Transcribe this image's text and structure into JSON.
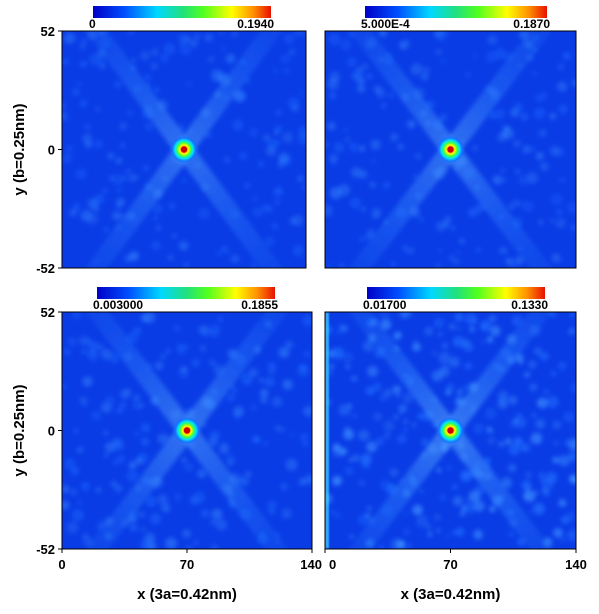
{
  "chart_data": [
    {
      "type": "heatmap",
      "panel": "top-left",
      "colorbar": {
        "min_label": "0",
        "max_label": "0.1940",
        "min": 0,
        "max": 0.194
      },
      "xlim": [
        0,
        140
      ],
      "ylim": [
        -52,
        52
      ],
      "xticks": [],
      "yticks": [
        "52",
        "0",
        "-52"
      ],
      "xlabel": "",
      "ylabel": "y (b=0.25nm)",
      "peak": {
        "x": 70,
        "y": 0
      },
      "noise": 0.06
    },
    {
      "type": "heatmap",
      "panel": "top-right",
      "colorbar": {
        "min_label": "5.000E-4",
        "max_label": "0.1870",
        "min": 0.0005,
        "max": 0.187
      },
      "xlim": [
        0,
        140
      ],
      "ylim": [
        -52,
        52
      ],
      "xticks": [],
      "yticks": [],
      "xlabel": "",
      "ylabel": "",
      "peak": {
        "x": 70,
        "y": 0
      },
      "noise": 0.07
    },
    {
      "type": "heatmap",
      "panel": "bottom-left",
      "colorbar": {
        "min_label": "0.003000",
        "max_label": "0.1855",
        "min": 0.003,
        "max": 0.1855
      },
      "xlim": [
        0,
        140
      ],
      "ylim": [
        -52,
        52
      ],
      "xticks": [
        "0",
        "70",
        "140"
      ],
      "yticks": [
        "52",
        "0",
        "-52"
      ],
      "xlabel": "x (3a=0.42nm)",
      "ylabel": "y (b=0.25nm)",
      "peak": {
        "x": 70,
        "y": 0
      },
      "noise": 0.08
    },
    {
      "type": "heatmap",
      "panel": "bottom-right",
      "colorbar": {
        "min_label": "0.01700",
        "max_label": "0.1330",
        "min": 0.017,
        "max": 0.133
      },
      "xlim": [
        0,
        140
      ],
      "ylim": [
        -52,
        52
      ],
      "xticks": [
        "0",
        "70",
        "140"
      ],
      "yticks": [],
      "xlabel": "x (3a=0.42nm)",
      "ylabel": "",
      "peak": {
        "x": 70,
        "y": 0
      },
      "noise": 0.16
    }
  ]
}
